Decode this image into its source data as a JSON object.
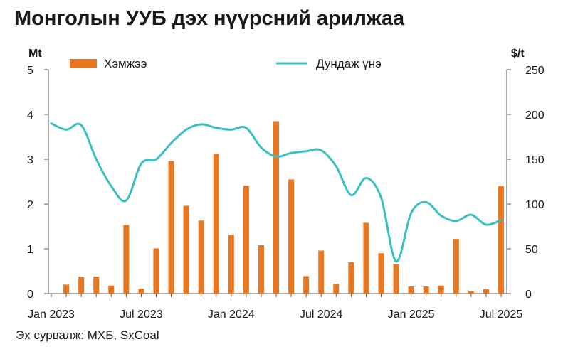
{
  "title": "Монголын УУБ дэх нүүрсний арилжаа",
  "source": "Эх сурвалж: МХБ, SxCoal",
  "colors": {
    "bar": "#E87722",
    "line": "#3BBFBF",
    "axis": "#555555"
  },
  "chart_data": {
    "type": "bar+line",
    "left_axis": {
      "unit": "Mt",
      "ylim": [
        0,
        5
      ],
      "ticks": [
        "0",
        "1",
        "2",
        "3",
        "4",
        "5"
      ]
    },
    "right_axis": {
      "unit": "$/t",
      "ylim": [
        0,
        250
      ],
      "ticks": [
        "0",
        "50",
        "100",
        "150",
        "200",
        "250"
      ]
    },
    "x_axis": {
      "start": "2023-01",
      "end": "2025-07",
      "tick_labels": [
        "Jan 2023",
        "Jul 2023",
        "Jan 2024",
        "Jul 2024",
        "Jan 2025",
        "Jul 2025"
      ]
    },
    "legend": {
      "placement": "top",
      "bar_label": "Хэмжээ",
      "line_label": "Дундаж үнэ"
    },
    "bars": {
      "name": "Хэмжээ",
      "x": [
        "2023-02",
        "2023-03",
        "2023-04",
        "2023-05",
        "2023-06",
        "2023-07",
        "2023-08",
        "2023-09",
        "2023-10",
        "2023-11",
        "2023-12",
        "2024-01",
        "2024-02",
        "2024-03",
        "2024-04",
        "2024-05",
        "2024-06",
        "2024-07",
        "2024-08",
        "2024-09",
        "2024-10",
        "2024-11",
        "2024-12",
        "2025-01",
        "2025-02",
        "2025-03",
        "2025-04",
        "2025-05",
        "2025-06",
        "2025-07"
      ],
      "values": [
        0.2,
        0.38,
        0.38,
        0.18,
        1.53,
        0.11,
        1.01,
        2.96,
        1.96,
        1.63,
        3.12,
        1.31,
        2.41,
        1.08,
        3.85,
        2.55,
        0.39,
        0.96,
        0.22,
        0.7,
        1.58,
        0.9,
        0.65,
        0.16,
        0.16,
        0.18,
        1.22,
        0.05,
        0.1,
        2.4
      ]
    },
    "line": {
      "name": "Дундаж үнэ",
      "x": [
        "2023-01",
        "2023-02",
        "2023-03",
        "2023-04",
        "2023-05",
        "2023-06",
        "2023-07",
        "2023-08",
        "2023-09",
        "2023-10",
        "2023-11",
        "2023-12",
        "2024-01",
        "2024-02",
        "2024-03",
        "2024-04",
        "2024-05",
        "2024-06",
        "2024-07",
        "2024-08",
        "2024-09",
        "2024-10",
        "2024-11",
        "2024-12",
        "2025-01",
        "2025-02",
        "2025-03",
        "2025-04",
        "2025-05",
        "2025-06",
        "2025-07"
      ],
      "values": [
        190,
        183,
        188,
        150,
        120,
        104,
        145,
        150,
        168,
        183,
        189,
        185,
        183,
        185,
        163,
        153,
        157,
        159,
        160,
        142,
        110,
        129,
        107,
        36,
        90,
        102,
        87,
        81,
        88,
        77,
        82
      ]
    }
  }
}
